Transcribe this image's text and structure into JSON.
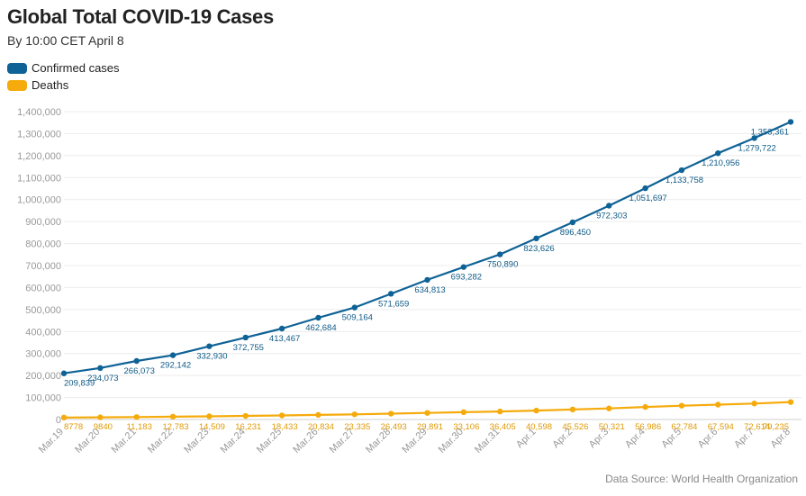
{
  "chart_data": {
    "type": "line",
    "title": "Global Total COVID-19 Cases",
    "subtitle": "By 10:00 CET April 8",
    "categories": [
      "Mar.19",
      "Mar.20",
      "Mar.21",
      "Mar.22",
      "Mar.23",
      "Mar.24",
      "Mar.25",
      "Mar.26",
      "Mar.27",
      "Mar.28",
      "Mar.29",
      "Mar.30",
      "Mar.31",
      "Apr.1",
      "Apr.2",
      "Apr.3",
      "Apr.4",
      "Apr.5",
      "Apr.6",
      "Apr.7",
      "Apr.8"
    ],
    "series": [
      {
        "name": "Confirmed cases",
        "color": "#0e6296",
        "values": [
          209839,
          234073,
          266073,
          292142,
          332930,
          372755,
          413467,
          462684,
          509164,
          571659,
          634813,
          693282,
          750890,
          823626,
          896450,
          972303,
          1051697,
          1133758,
          1210956,
          1279722,
          1353361
        ],
        "labels": [
          "209,839",
          "234,073",
          "266,073",
          "292,142",
          "332,930",
          "372,755",
          "413,467",
          "462,684",
          "509,164",
          "571,659",
          "634,813",
          "693,282",
          "750,890",
          "823,626",
          "896,450",
          "972,303",
          "1,051,697",
          "1,133,758",
          "1,210,956",
          "1,279,722",
          "1,353,361"
        ]
      },
      {
        "name": "Deaths",
        "color": "#f5ab0c",
        "values": [
          8778,
          9840,
          11183,
          12783,
          14509,
          16231,
          18433,
          20834,
          23335,
          26493,
          29891,
          33106,
          36405,
          40598,
          45526,
          50321,
          56986,
          62784,
          67594,
          72614,
          79235
        ],
        "labels": [
          "8778",
          "9840",
          "11,183",
          "12,783",
          "14,509",
          "16,231",
          "18,433",
          "20,834",
          "23,335",
          "26,493",
          "29,891",
          "33,106",
          "36,405",
          "40,598",
          "45,526",
          "50,321",
          "56,986",
          "62,784",
          "67,594",
          "72,614",
          "79,235"
        ]
      }
    ],
    "ylim": [
      0,
      1400000
    ],
    "yticks": [
      0,
      100000,
      200000,
      300000,
      400000,
      500000,
      600000,
      700000,
      800000,
      900000,
      1000000,
      1100000,
      1200000,
      1300000,
      1400000
    ],
    "ytick_labels": [
      "0",
      "100,000",
      "200,000",
      "300,000",
      "400,000",
      "500,000",
      "600,000",
      "700,000",
      "800,000",
      "900,000",
      "1,000,000",
      "1,100,000",
      "1,200,000",
      "1,300,000",
      "1,400,000"
    ],
    "grid": true,
    "legend_position": "top-left"
  },
  "source": "Data Source: World Health Organization"
}
